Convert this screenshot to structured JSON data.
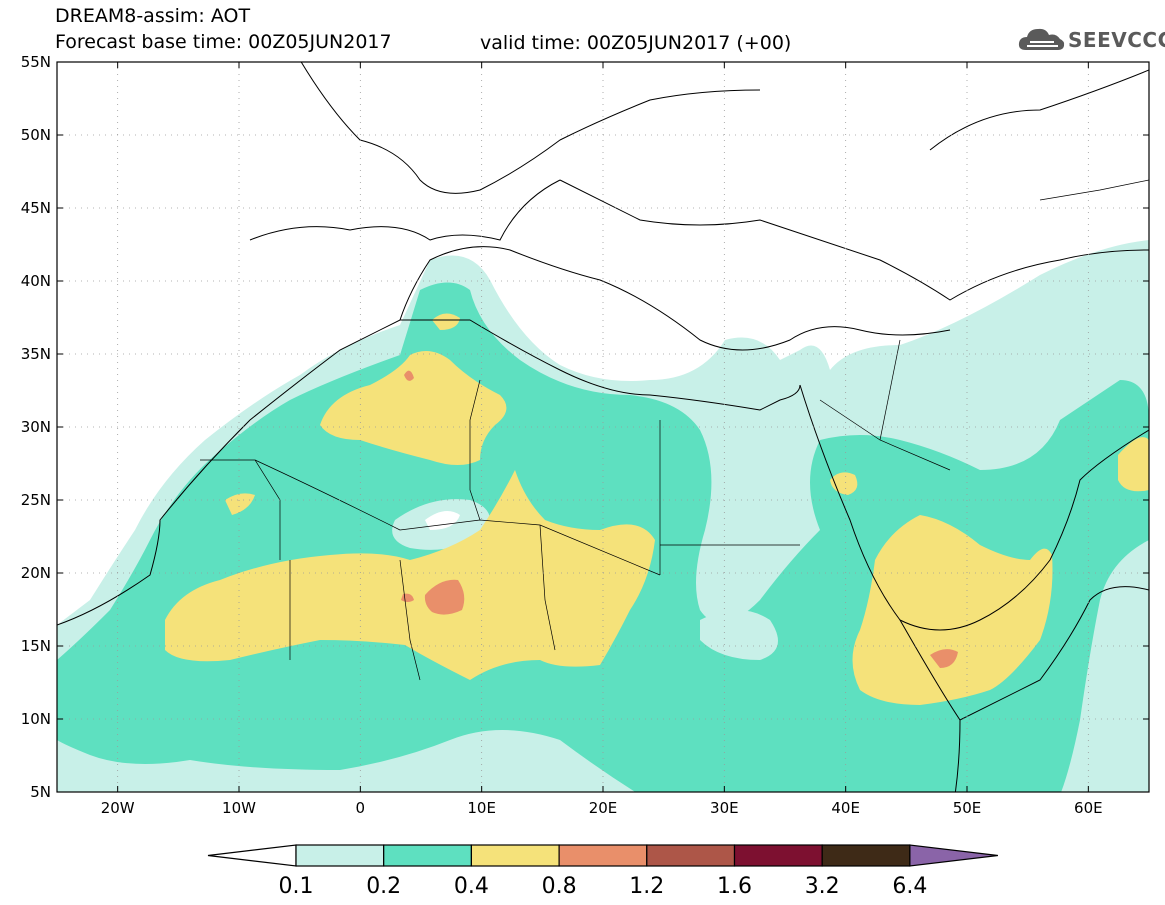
{
  "header": {
    "title": "DREAM8-assim: AOT",
    "base_time": "Forecast base time: 00Z05JUN2017",
    "valid_time": "valid time: 00Z05JUN2017 (+00)"
  },
  "logo": {
    "text": "SEEVCCC",
    "icon": "cloud-icon"
  },
  "map": {
    "lon_range": [
      -25,
      65
    ],
    "lat_range": [
      5,
      55
    ],
    "lat_ticks": [
      "5N",
      "10N",
      "15N",
      "20N",
      "25N",
      "30N",
      "35N",
      "40N",
      "45N",
      "50N",
      "55N"
    ],
    "lon_ticks": [
      "20W",
      "10W",
      "0",
      "10E",
      "20E",
      "30E",
      "40E",
      "50E",
      "60E"
    ],
    "grid": "dotted"
  },
  "colorbar": {
    "levels": [
      "0.1",
      "0.2",
      "0.4",
      "0.8",
      "1.2",
      "1.6",
      "3.2",
      "6.4"
    ],
    "colors": [
      "#c8f0e8",
      "#5ee0c0",
      "#f5e27a",
      "#e98f6a",
      "#ad5648",
      "#7d1030",
      "#3e2a17",
      "#8a64a8"
    ],
    "low_color": "#ffffff"
  }
}
